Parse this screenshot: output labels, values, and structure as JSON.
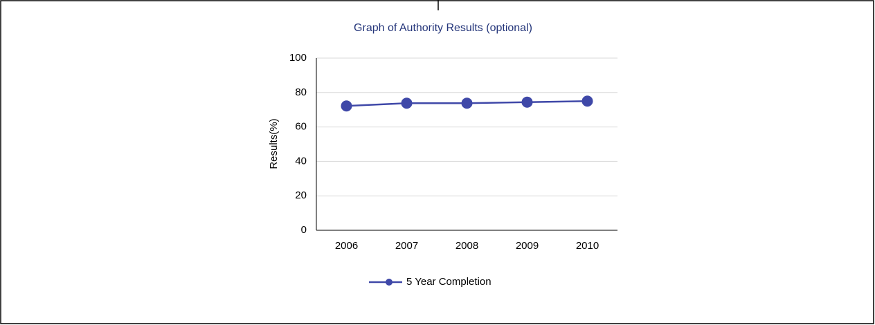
{
  "chart_data": {
    "type": "line",
    "title": "Graph of Authority Results (optional)",
    "y_label": "Results(%)",
    "categories": [
      "2006",
      "2007",
      "2008",
      "2009",
      "2010"
    ],
    "series": [
      {
        "name": "5 Year Completion",
        "color": "#3f48a8",
        "values": [
          72.2,
          73.8,
          73.8,
          74.4,
          75.0
        ]
      }
    ],
    "ylim": [
      0,
      100
    ],
    "yticks": [
      0,
      20,
      40,
      60,
      80,
      100
    ],
    "grid": true,
    "legend": "bottom"
  }
}
